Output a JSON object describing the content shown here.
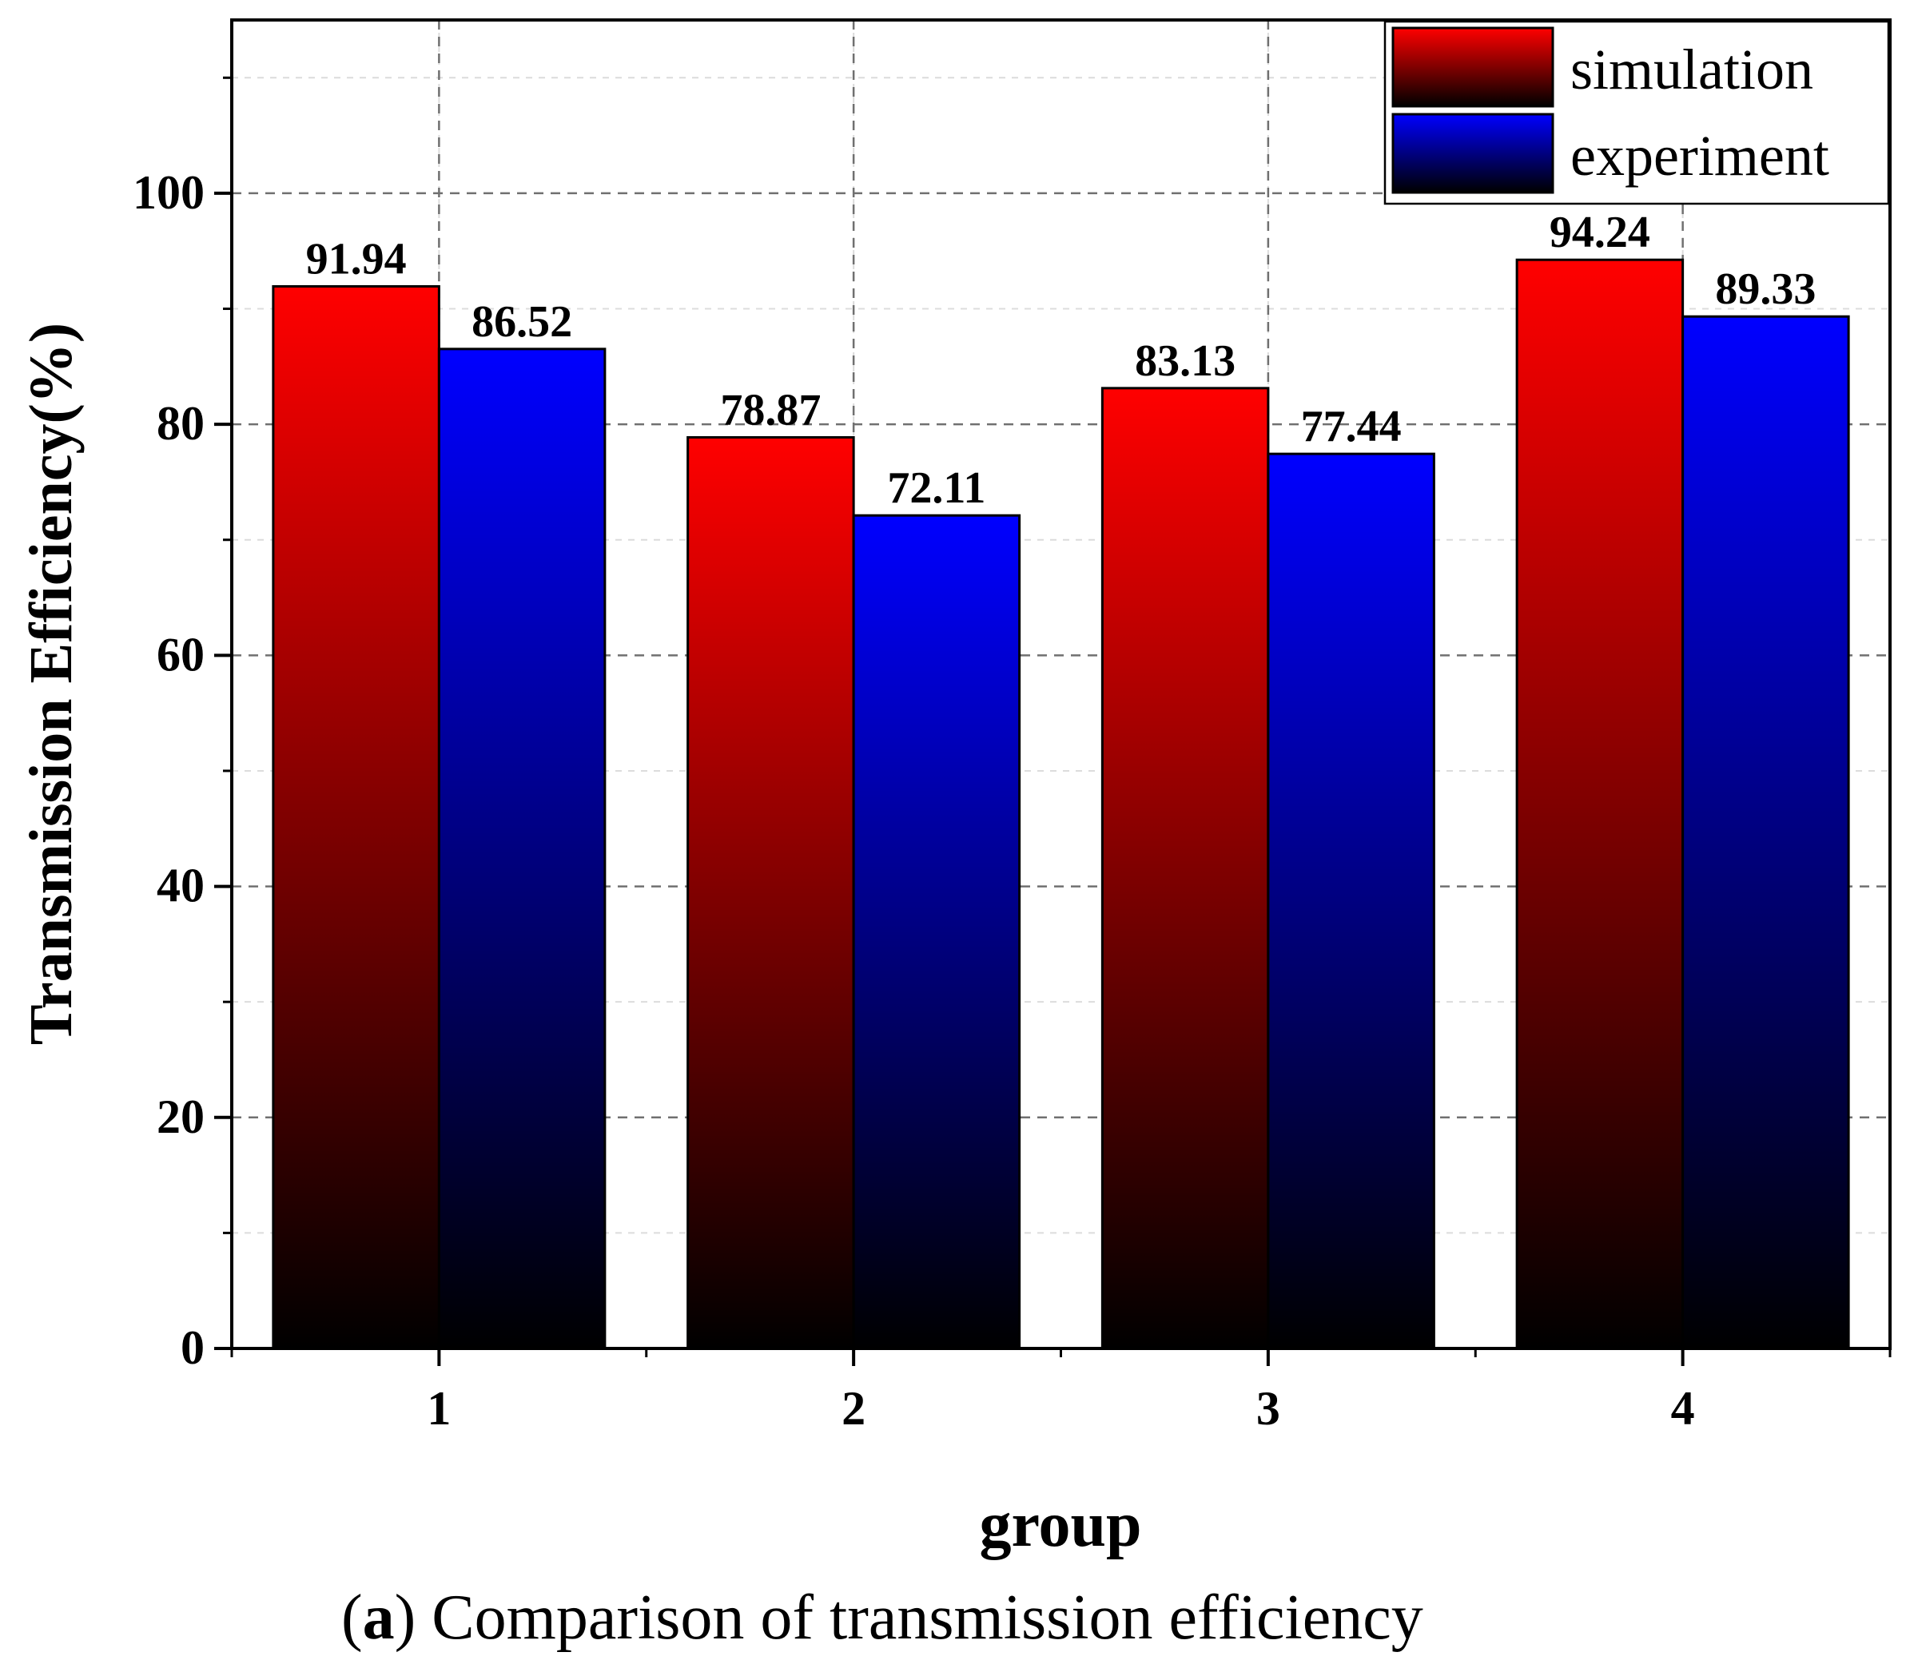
{
  "chart_data": {
    "type": "bar",
    "title": "",
    "xlabel": "group",
    "ylabel": "Transmission Efficiency(%)",
    "categories": [
      "1",
      "2",
      "3",
      "4"
    ],
    "series": [
      {
        "name": "simulation",
        "values": [
          91.94,
          78.87,
          83.13,
          94.24
        ],
        "labels": [
          "91.94",
          "78.87",
          "83.13",
          "94.24"
        ],
        "color_top": "#ff0000",
        "color_bottom": "#000000"
      },
      {
        "name": "experiment",
        "values": [
          86.52,
          72.11,
          77.44,
          89.33
        ],
        "labels": [
          "86.52",
          "72.11",
          "77.44",
          "89.33"
        ],
        "color_top": "#0000ff",
        "color_bottom": "#000000"
      }
    ],
    "xlim": [
      0.5,
      4.5
    ],
    "ylim": [
      0,
      115
    ],
    "yticks": [
      0,
      20,
      40,
      60,
      80,
      100
    ],
    "ytick_labels": [
      "0",
      "20",
      "40",
      "60",
      "80",
      "100"
    ],
    "grid": true,
    "legend_position": "top-right"
  },
  "caption": {
    "open": "(",
    "letter": "a",
    "rest": ") Comparison of transmission efficiency"
  }
}
